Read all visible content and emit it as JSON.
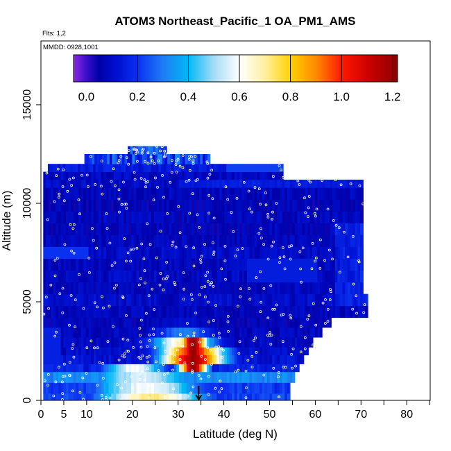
{
  "chart_data": {
    "type": "heatmap",
    "title": "ATOM3 Northeast_Pacific_1 OA_PM1_AMS",
    "annotations": {
      "flights": "Flts: 1,2",
      "dates": "MMDD: 0928,1001"
    },
    "xlabel": "Latitude (deg N)",
    "ylabel": "Altitude (m)",
    "xlim": [
      0,
      85
    ],
    "ylim": [
      0,
      18000
    ],
    "x_ticks": [
      0,
      5,
      10,
      20,
      30,
      40,
      50,
      60,
      70,
      80
    ],
    "x_minor_ticks": [
      15,
      25,
      35,
      45,
      55,
      65,
      75,
      85
    ],
    "y_ticks": [
      0,
      5000,
      10000,
      15000
    ],
    "colorbar": {
      "range": [
        -0.05,
        1.22
      ],
      "ticks": [
        0.0,
        0.2,
        0.4,
        0.6,
        0.8,
        1.0,
        1.2
      ],
      "tick_labels": [
        "0.0",
        "0.2",
        "0.4",
        "0.6",
        "0.8",
        "1.0",
        "1.2"
      ],
      "divisions": [
        0.2,
        0.4,
        0.6,
        0.8,
        1.0,
        1.2
      ],
      "stops": [
        {
          "v": -0.05,
          "color": "#8a2be2"
        },
        {
          "v": 0.0,
          "color": "#3a10c8"
        },
        {
          "v": 0.05,
          "color": "#0000a8"
        },
        {
          "v": 0.12,
          "color": "#0010d0"
        },
        {
          "v": 0.2,
          "color": "#0a30f0"
        },
        {
          "v": 0.3,
          "color": "#1e7cf5"
        },
        {
          "v": 0.4,
          "color": "#00b8f5"
        },
        {
          "v": 0.5,
          "color": "#a6dcf5"
        },
        {
          "v": 0.6,
          "color": "#ffffff"
        },
        {
          "v": 0.7,
          "color": "#fff0a0"
        },
        {
          "v": 0.8,
          "color": "#ffd200"
        },
        {
          "v": 0.9,
          "color": "#ff8a00"
        },
        {
          "v": 1.0,
          "color": "#ff1a00"
        },
        {
          "v": 1.1,
          "color": "#d00000"
        },
        {
          "v": 1.22,
          "color": "#8b0000"
        }
      ]
    },
    "arrow_marker": {
      "latitude": 34.5,
      "altitude": 0
    },
    "bands": [
      {
        "z0": 0,
        "z1": 350,
        "x0": 0.5,
        "x1": 54.5,
        "base": 0.22,
        "plume": 0.72,
        "pc": 24
      },
      {
        "z0": 350,
        "z1": 900,
        "x0": 0.5,
        "x1": 54.5,
        "base": 0.2,
        "plume": 0.6,
        "pc": 23
      },
      {
        "z0": 900,
        "z1": 1450,
        "x0": 0.5,
        "x1": 55.5,
        "base": 0.32,
        "plume": 0.55,
        "pc": 22
      },
      {
        "z0": 1450,
        "z1": 1850,
        "x0": 0.5,
        "x1": 56.5,
        "base": 0.16,
        "plume": 0.6,
        "pc": 20
      },
      {
        "z0": 1850,
        "z1": 2300,
        "x0": 0.5,
        "x1": 57.5,
        "base": 0.12,
        "plume": 1.15,
        "pc": 33
      },
      {
        "z0": 2300,
        "z1": 2700,
        "x0": 0.5,
        "x1": 58.5,
        "base": 0.1,
        "plume": 1.05,
        "pc": 33
      },
      {
        "z0": 2700,
        "z1": 3200,
        "x0": 0.5,
        "x1": 59.5,
        "base": 0.09,
        "plume": 0.7,
        "pc": 31
      },
      {
        "z0": 3200,
        "z1": 3700,
        "x0": 0.5,
        "x1": 61.5,
        "base": 0.08,
        "plume": 0.3,
        "pc": 31
      },
      {
        "z0": 3700,
        "z1": 4200,
        "x0": 0.5,
        "x1": 63.5,
        "base": 0.07,
        "plume": 0.12,
        "pc": 31
      },
      {
        "z0": 4200,
        "z1": 4800,
        "x0": 0.5,
        "x1": 71.5,
        "base": 0.08,
        "plume": 0.08,
        "pc": 30
      },
      {
        "z0": 4800,
        "z1": 5400,
        "x0": 0.5,
        "x1": 71.5,
        "base": 0.1,
        "plume": 0.1,
        "pc": 30
      },
      {
        "z0": 5400,
        "z1": 6000,
        "x0": 0.5,
        "x1": 70.5,
        "base": 0.08,
        "plume": 0.08,
        "pc": 30
      },
      {
        "z0": 6000,
        "z1": 6600,
        "x0": 0.5,
        "x1": 70.5,
        "base": 0.09,
        "plume": 0.09,
        "pc": 30
      },
      {
        "z0": 6600,
        "z1": 7200,
        "x0": 0.5,
        "x1": 70.5,
        "base": 0.08,
        "plume": 0.08,
        "pc": 30
      },
      {
        "z0": 7200,
        "z1": 7800,
        "x0": 0.5,
        "x1": 70.5,
        "base": 0.1,
        "plume": 0.1,
        "pc": 30
      },
      {
        "z0": 7800,
        "z1": 8400,
        "x0": 0.5,
        "x1": 70.5,
        "base": 0.08,
        "plume": 0.08,
        "pc": 30
      },
      {
        "z0": 8400,
        "z1": 9000,
        "x0": 0.5,
        "x1": 70.5,
        "base": 0.07,
        "plume": 0.07,
        "pc": 30
      },
      {
        "z0": 9000,
        "z1": 9600,
        "x0": 0.5,
        "x1": 70.5,
        "base": 0.08,
        "plume": 0.08,
        "pc": 30
      },
      {
        "z0": 9600,
        "z1": 10200,
        "x0": 0.5,
        "x1": 70.5,
        "base": 0.07,
        "plume": 0.07,
        "pc": 30
      },
      {
        "z0": 10200,
        "z1": 10800,
        "x0": 0.5,
        "x1": 70.5,
        "base": 0.08,
        "plume": 0.08,
        "pc": 30
      },
      {
        "z0": 10800,
        "z1": 11200,
        "x0": 0.5,
        "x1": 70.5,
        "base": 0.1,
        "plume": 0.1,
        "pc": 30
      },
      {
        "z0": 11200,
        "z1": 11600,
        "x0": 0.5,
        "x1": 53,
        "base": 0.09,
        "plume": 0.09,
        "pc": 30
      },
      {
        "z0": 11600,
        "z1": 12000,
        "x0": 1.5,
        "x1": 53,
        "base": 0.14,
        "plume": 0.14,
        "pc": 30
      },
      {
        "z0": 12000,
        "z1": 12500,
        "x0": 9.5,
        "x1": 37,
        "base": 0.12,
        "plume": 0.12,
        "pc": 30
      },
      {
        "z0": 12500,
        "z1": 12900,
        "x0": 19,
        "x1": 27.5,
        "base": 0.08,
        "plume": 0.08,
        "pc": 30
      }
    ],
    "plume": {
      "x0": 28,
      "x1": 37,
      "z0": 1450,
      "z1": 3300,
      "peak": 1.2,
      "peak_x": 33
    }
  }
}
